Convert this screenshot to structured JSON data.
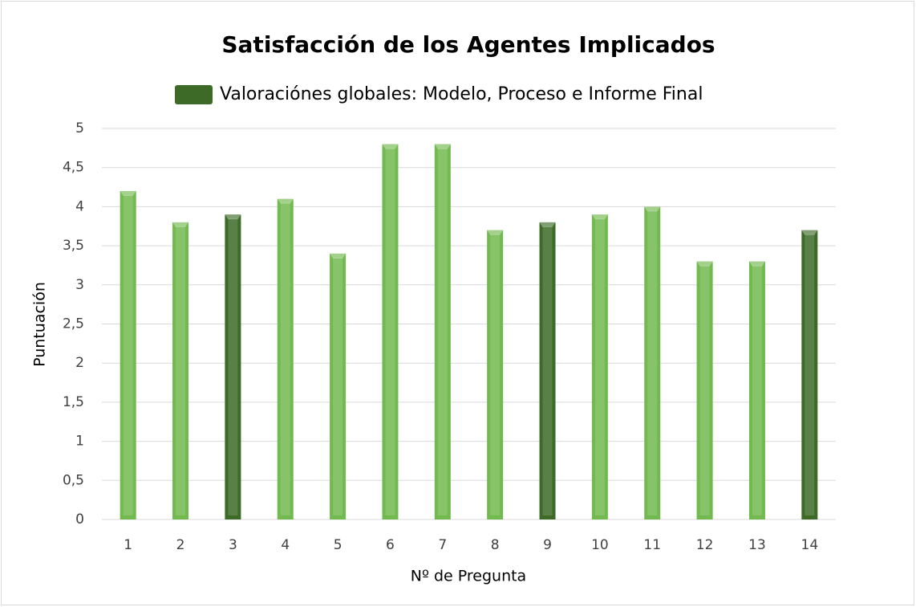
{
  "chart_data": {
    "type": "bar",
    "title": "Satisfacción de los Agentes Implicados",
    "x_label": "Nº de Pregunta",
    "y_label": "Puntuación",
    "categories": [
      "1",
      "2",
      "3",
      "4",
      "5",
      "6",
      "7",
      "8",
      "9",
      "10",
      "11",
      "12",
      "13",
      "14"
    ],
    "series": [
      {
        "name": "Valoraciónes globales: Modelo, Proceso e Informe Final",
        "color": "#3d6b27",
        "values": [
          4.2,
          3.8,
          3.9,
          4.1,
          3.4,
          4.8,
          4.8,
          3.7,
          3.8,
          3.9,
          4.0,
          3.3,
          3.3,
          3.7
        ],
        "colors": [
          "#72b94f",
          "#72b94f",
          "#3d6b27",
          "#72b94f",
          "#72b94f",
          "#72b94f",
          "#72b94f",
          "#72b94f",
          "#3d6b27",
          "#72b94f",
          "#72b94f",
          "#72b94f",
          "#72b94f",
          "#3d6b27"
        ]
      }
    ],
    "ylim": [
      0,
      5
    ],
    "yticks": [
      0,
      {
        "value": 0.5,
        "label": "0,5"
      },
      1,
      {
        "value": 1.5,
        "label": "1,5"
      },
      2,
      {
        "value": 2.5,
        "label": "2,5"
      },
      3,
      {
        "value": 3.5,
        "label": "3,5"
      },
      4,
      {
        "value": 4.5,
        "label": "4,5"
      },
      5
    ],
    "grid": true,
    "legend": "top"
  }
}
